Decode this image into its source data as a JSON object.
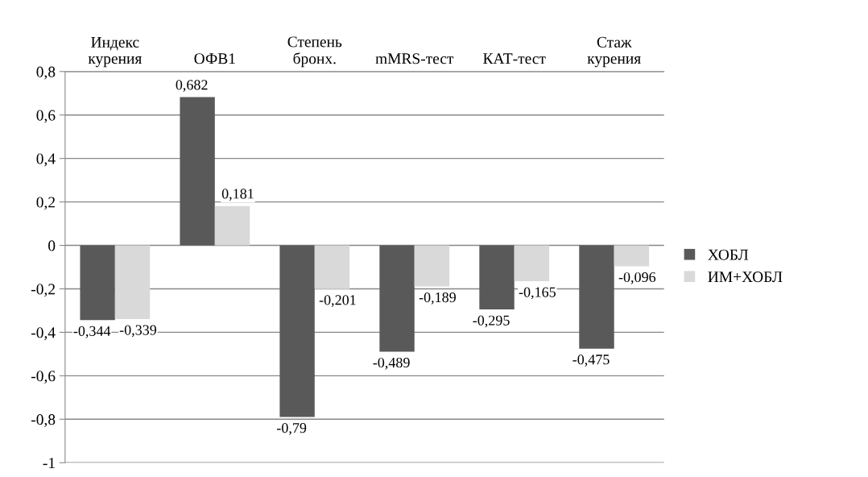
{
  "chart_data": {
    "type": "bar",
    "categories": [
      "Индекс\nкурения",
      "ОФВ1",
      "Степень\nбронх.",
      "mMRS-тест",
      "КАТ-тест",
      "Стаж\nкурения"
    ],
    "series": [
      {
        "name": "ХОБЛ",
        "color": "#595959",
        "values": [
          -0.344,
          0.682,
          -0.79,
          -0.489,
          -0.295,
          -0.475
        ],
        "value_labels": [
          "-0,344",
          "0,682",
          "-0,79",
          "-0,489",
          "-0,295",
          "-0,475"
        ]
      },
      {
        "name": "ИМ+ХОБЛ",
        "color": "#d9d9d9",
        "values": [
          -0.339,
          0.181,
          -0.201,
          -0.189,
          -0.165,
          -0.096
        ],
        "value_labels": [
          "-0,339",
          "0,181",
          "-0,201",
          "-0,189",
          "-0,165",
          "-0,096"
        ]
      }
    ],
    "ylim": [
      -1,
      0.8
    ],
    "yticks": [
      {
        "value": -1,
        "label": "-1"
      },
      {
        "value": -0.8,
        "label": "-0,8"
      },
      {
        "value": -0.6,
        "label": "-0,6"
      },
      {
        "value": -0.4,
        "label": "-0,4"
      },
      {
        "value": -0.2,
        "label": "-0,2"
      },
      {
        "value": 0,
        "label": "0"
      },
      {
        "value": 0.2,
        "label": "0,2"
      },
      {
        "value": 0.4,
        "label": "0,4"
      },
      {
        "value": 0.6,
        "label": "0,6"
      },
      {
        "value": 0.8,
        "label": "0,8"
      }
    ],
    "grid": "y",
    "legend": "right"
  }
}
